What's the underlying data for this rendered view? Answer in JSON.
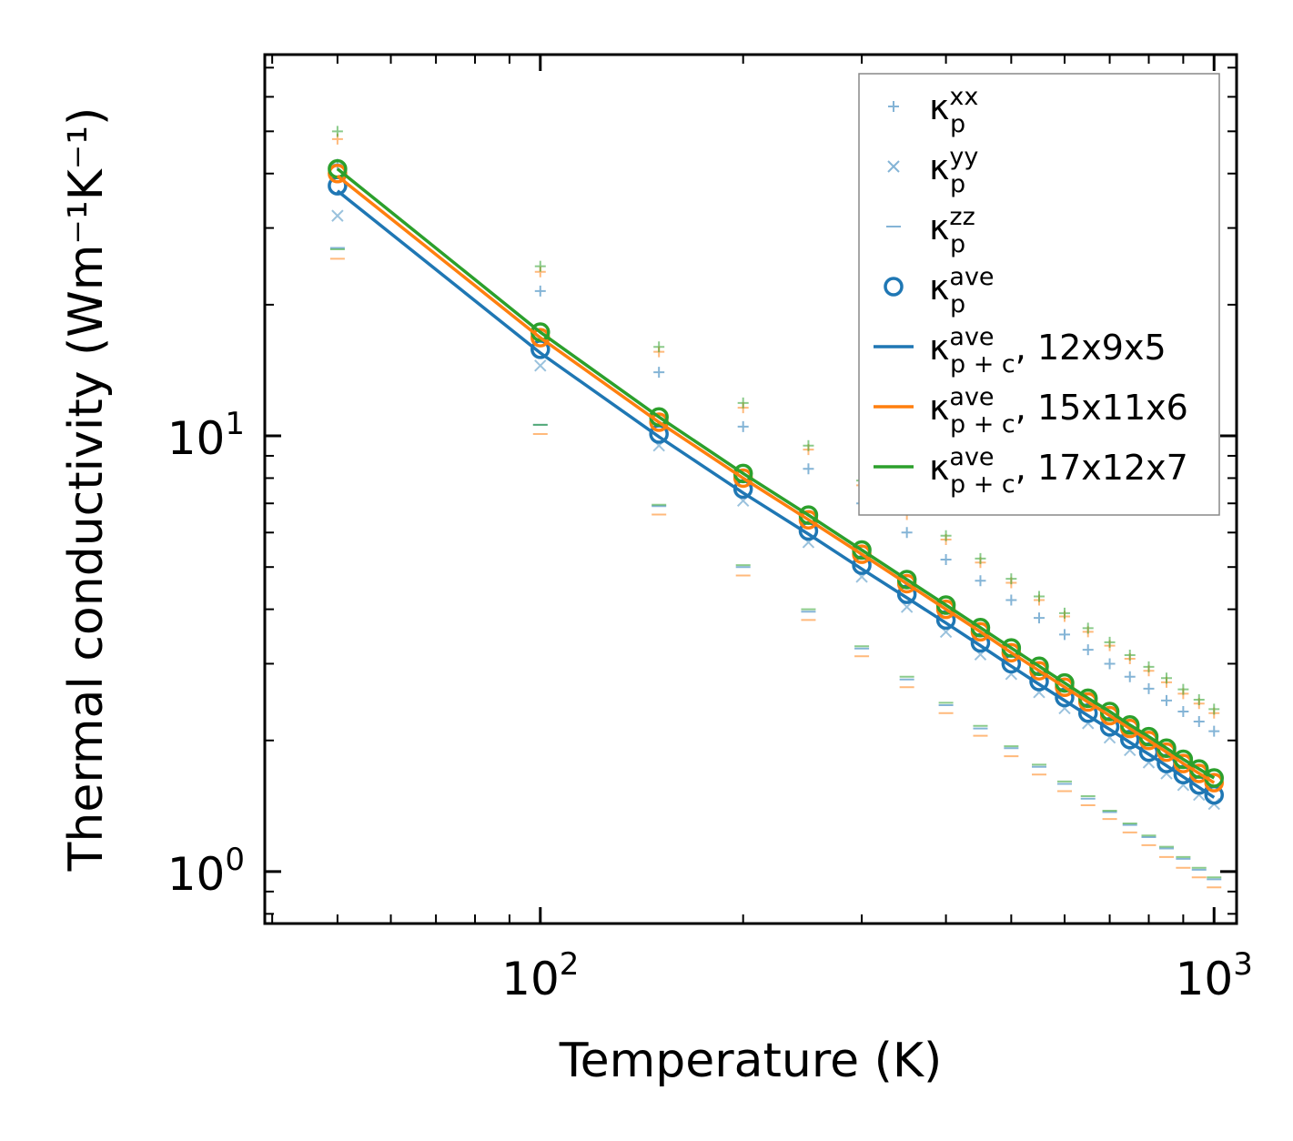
{
  "chart_data": {
    "type": "scatter",
    "xscale": "log",
    "yscale": "log",
    "xlabel": "Temperature (K)",
    "ylabel": "Thermal conductivity (Wm⁻¹K⁻¹)",
    "xlim": [
      39,
      1080
    ],
    "ylim": [
      0.76,
      75
    ],
    "x_ticks": [
      {
        "value": 100,
        "base": "10",
        "exp": "2"
      },
      {
        "value": 1000,
        "base": "10",
        "exp": "3"
      }
    ],
    "y_ticks": [
      {
        "value": 1,
        "base": "10",
        "exp": "0"
      },
      {
        "value": 10,
        "base": "10",
        "exp": "1"
      }
    ],
    "x": [
      50,
      100,
      150,
      200,
      250,
      300,
      350,
      400,
      450,
      500,
      550,
      600,
      650,
      700,
      750,
      800,
      850,
      900,
      950,
      1000
    ],
    "colors": {
      "blue": "#1f77b4",
      "orange": "#ff7f0e",
      "green": "#2ca02c"
    },
    "series": [
      {
        "name": "kxx_blue",
        "kind": "marker",
        "marker": "plus",
        "color": "#1f77b4",
        "alpha": 0.55,
        "values": [
          42,
          21.5,
          14,
          10.5,
          8.4,
          7.0,
          6.0,
          5.2,
          4.65,
          4.2,
          3.82,
          3.5,
          3.23,
          3.0,
          2.8,
          2.63,
          2.47,
          2.33,
          2.21,
          2.1
        ]
      },
      {
        "name": "kxx_orange",
        "kind": "marker",
        "marker": "plus",
        "color": "#ff7f0e",
        "alpha": 0.55,
        "values": [
          48,
          23.8,
          15.6,
          11.6,
          9.3,
          7.7,
          6.6,
          5.78,
          5.12,
          4.6,
          4.2,
          3.85,
          3.55,
          3.3,
          3.08,
          2.89,
          2.72,
          2.56,
          2.43,
          2.31
        ]
      },
      {
        "name": "kxx_green",
        "kind": "marker",
        "marker": "plus",
        "color": "#2ca02c",
        "alpha": 0.55,
        "values": [
          50,
          24.5,
          16,
          11.9,
          9.5,
          7.9,
          6.75,
          5.9,
          5.23,
          4.7,
          4.28,
          3.92,
          3.62,
          3.36,
          3.14,
          2.95,
          2.78,
          2.62,
          2.48,
          2.36
        ]
      },
      {
        "name": "kyy_blue",
        "kind": "marker",
        "marker": "cross",
        "color": "#1f77b4",
        "alpha": 0.45,
        "values": [
          32,
          14.5,
          9.5,
          7.1,
          5.7,
          4.75,
          4.05,
          3.55,
          3.15,
          2.84,
          2.58,
          2.37,
          2.19,
          2.03,
          1.9,
          1.78,
          1.68,
          1.58,
          1.5,
          1.43
        ]
      },
      {
        "name": "kzz_blue",
        "kind": "marker",
        "marker": "dash",
        "color": "#1f77b4",
        "alpha": 0.55,
        "values": [
          27,
          10.6,
          6.9,
          5.0,
          3.95,
          3.25,
          2.76,
          2.41,
          2.13,
          1.92,
          1.74,
          1.59,
          1.47,
          1.37,
          1.28,
          1.2,
          1.13,
          1.07,
          1.01,
          0.96
        ]
      },
      {
        "name": "kzz_orange",
        "kind": "marker",
        "marker": "dash",
        "color": "#ff7f0e",
        "alpha": 0.55,
        "values": [
          25.5,
          10.1,
          6.6,
          4.78,
          3.78,
          3.12,
          2.65,
          2.31,
          2.05,
          1.84,
          1.67,
          1.53,
          1.42,
          1.32,
          1.23,
          1.15,
          1.08,
          1.02,
          0.97,
          0.92
        ]
      },
      {
        "name": "kzz_green",
        "kind": "marker",
        "marker": "dash",
        "color": "#2ca02c",
        "alpha": 0.55,
        "values": [
          26.8,
          10.6,
          6.95,
          5.05,
          4.0,
          3.29,
          2.8,
          2.44,
          2.16,
          1.94,
          1.76,
          1.61,
          1.49,
          1.38,
          1.29,
          1.21,
          1.14,
          1.08,
          1.02,
          0.97
        ]
      },
      {
        "name": "kave_p_blue",
        "kind": "marker",
        "marker": "circle",
        "color": "#1f77b4",
        "alpha": 1,
        "values": [
          37.5,
          15.8,
          10.1,
          7.55,
          6.05,
          5.05,
          4.33,
          3.78,
          3.35,
          3.0,
          2.73,
          2.51,
          2.31,
          2.15,
          2.01,
          1.88,
          1.77,
          1.67,
          1.58,
          1.5
        ]
      },
      {
        "name": "kave_p_orange",
        "kind": "marker",
        "marker": "circle",
        "color": "#ff7f0e",
        "alpha": 1,
        "values": [
          40,
          16.8,
          10.75,
          8.0,
          6.42,
          5.35,
          4.58,
          4.0,
          3.55,
          3.18,
          2.89,
          2.65,
          2.45,
          2.28,
          2.13,
          2.0,
          1.88,
          1.77,
          1.68,
          1.6
        ]
      },
      {
        "name": "kave_p_green",
        "kind": "marker",
        "marker": "circle",
        "color": "#2ca02c",
        "alpha": 1,
        "values": [
          41,
          17.3,
          11.05,
          8.2,
          6.58,
          5.47,
          4.68,
          4.09,
          3.63,
          3.26,
          2.96,
          2.71,
          2.5,
          2.33,
          2.17,
          2.04,
          1.92,
          1.81,
          1.72,
          1.64
        ]
      },
      {
        "name": "line_12x9x5",
        "kind": "line",
        "color": "#1f77b4",
        "values": [
          36.5,
          15.5,
          9.95,
          7.4,
          5.95,
          4.95,
          4.25,
          3.72,
          3.3,
          2.96,
          2.69,
          2.47,
          2.28,
          2.12,
          1.98,
          1.86,
          1.75,
          1.65,
          1.56,
          1.48
        ]
      },
      {
        "name": "line_15x11x6",
        "kind": "line",
        "color": "#ff7f0e",
        "values": [
          39.5,
          16.8,
          10.75,
          8.0,
          6.42,
          5.35,
          4.58,
          4.0,
          3.55,
          3.18,
          2.89,
          2.65,
          2.45,
          2.28,
          2.13,
          2.0,
          1.88,
          1.77,
          1.68,
          1.6
        ]
      },
      {
        "name": "line_17x12x7",
        "kind": "line",
        "color": "#2ca02c",
        "values": [
          41,
          17.3,
          11.05,
          8.2,
          6.58,
          5.47,
          4.68,
          4.09,
          3.63,
          3.26,
          2.96,
          2.71,
          2.5,
          2.33,
          2.17,
          2.04,
          1.92,
          1.81,
          1.72,
          1.64
        ]
      }
    ],
    "legend": {
      "placement": "upper right",
      "entries": [
        {
          "marker": "plus",
          "color": "#1f77b4",
          "alpha": 0.55,
          "sym": "κ",
          "sub": "p",
          "sup": "xx",
          "suffix": ""
        },
        {
          "marker": "cross",
          "color": "#1f77b4",
          "alpha": 0.55,
          "sym": "κ",
          "sub": "p",
          "sup": "yy",
          "suffix": ""
        },
        {
          "marker": "dash",
          "color": "#1f77b4",
          "alpha": 0.55,
          "sym": "κ",
          "sub": "p",
          "sup": "zz",
          "suffix": ""
        },
        {
          "marker": "circle",
          "color": "#1f77b4",
          "alpha": 1,
          "sym": "κ",
          "sub": "p",
          "sup": "ave",
          "suffix": ""
        },
        {
          "marker": "line",
          "color": "#1f77b4",
          "alpha": 1,
          "sym": "κ",
          "sub": "p + c",
          "sup": "ave",
          "suffix": ", 12x9x5"
        },
        {
          "marker": "line",
          "color": "#ff7f0e",
          "alpha": 1,
          "sym": "κ",
          "sub": "p + c",
          "sup": "ave",
          "suffix": ", 15x11x6"
        },
        {
          "marker": "line",
          "color": "#2ca02c",
          "alpha": 1,
          "sym": "κ",
          "sub": "p + c",
          "sup": "ave",
          "suffix": ", 17x12x7"
        }
      ]
    }
  }
}
